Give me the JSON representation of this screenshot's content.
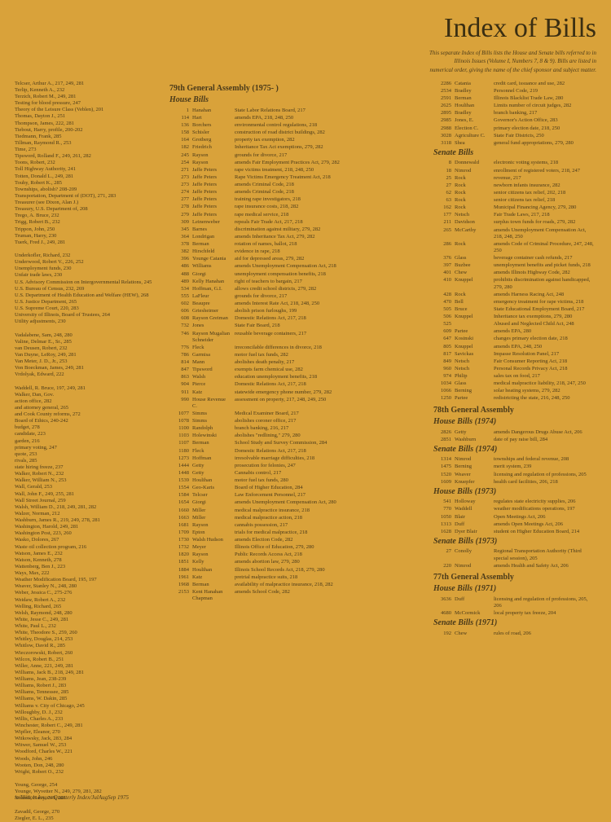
{
  "title": "Index of Bills",
  "subtitle1": "This separate Index of Bills lists the House and Senate bills referred to in",
  "subtitle2": "Illinois Issues (Volume I, Numbers 7, 8 & 9). Bills are listed in",
  "subtitle3": "numerical order, giving the name of the chief sponsor and subject matter.",
  "assembly_head": "79th General Assembly (1975-   )",
  "house_bills_head": "House Bills",
  "senate_bills_head": "Senate Bills",
  "footer": "iv/Illinois Issues Quarterly Index/JulAugSep 1975",
  "leftIndex": [
    "Telcser, Arthur A., 217, 249, 281",
    "Terlip, Kenneth A., 232",
    "Terzich, Robert M., 249, 281",
    "Testing for blood pressure, 247",
    "Theory of the Leisure Class (Veblen), 201",
    "Thomas, Dayton J., 251",
    "Thompson, James, 222, 281",
    "Tiebout, Harry, profile, 200-202",
    "Tiedmann, Frank, 285",
    "Tillman, Raymond R., 253",
    "Time, 273",
    "Tipsword, Rolland F., 249, 261, 282",
    "Toons, Robert, 232",
    "Toll Highway Authority, 241",
    "Totten, Donald L., 249, 281",
    "Touhy, Robert K., 285",
    "Townships, abolish? 208-209",
    "Transportation, Department of (DOT), 271, 283",
    "Treasurer (see Dixon, Alan J.)",
    "Treasury, U.S. Department of, 208",
    "Trego, A. Bruce, 232",
    "Trigg, Robert B., 232",
    "Trippon, John, 250",
    "Truman, Harry, 230",
    "Tuerk, Fred J., 249, 281",
    "",
    "Underkofler, Richard, 232",
    "Underwood, Robert V., 226, 252",
    "Unemployment funds, 230",
    "Unfair trade laws, 230",
    "U.S. Advisory Commission on Intergovernmental Relations, 245",
    "U.S. Bureau of Census, 232, 269",
    "U.S. Department of Health Education and Welfare (HEW), 268",
    "U.S. Justice Department, 265",
    "U.S. Supreme Court, 220, 283",
    "University of Illinois, Board of Trustees, 264",
    "Utility adjustments, 230",
    "",
    "Vadalabene, Sam, 248, 280",
    "Valine, Delmar E., Sr., 285",
    "van Deusen, Robert, 232",
    "Van Duyne, LeRoy, 249, 281",
    "Van Meter, J. D., Jr., 253",
    "Von Boeckman, James, 249, 281",
    "Vrdolyak, Edward, 222",
    "",
    "Waddell, R. Bruce, 197, 249, 281",
    "Walker, Dan, Gov.",
    "  action office, 282",
    "  and attorney general, 265",
    "  and Cook County reforms, 272",
    "  Board of Ethics, 240-242",
    "  budget, 278",
    "  candidate, 223",
    "  garden, 216",
    "  primary voting, 247",
    "  quote, 253",
    "  rivals, 285",
    "  state hiring freeze, 237",
    "Walker, Robert N., 232",
    "Walker, William N., 253",
    "Wall, Gerald, 253",
    "Wall, John F., 249, 255, 281",
    "Wall Street Journal, 259",
    "Walsh, William D., 218, 249, 281, 282",
    "Walzer, Norman, 212",
    "Washburn, James R., 219, 249, 278, 281",
    "Washington, Harold, 249, 281",
    "Washington Post, 223, 260",
    "Wasko, Dolores, 267",
    "Waste oil collection program, 216",
    "Watson, James E., 232",
    "Watson, Kenneth, 278",
    "Wattenberg, Ben J., 223",
    "Ways, Max, 222",
    "Weather Modification Board, 195, 197",
    "Weaver, Stanley N., 248, 280",
    "Weber, Jessica C., 275-276",
    "Weidaw, Robert A., 232",
    "Welling, Richard, 265",
    "Welsh, Raymond, 248, 280",
    "White, Jesse C., 249, 281",
    "White, Paul L., 232",
    "White, Theodore S., 259, 260",
    "Whitley, Douglas, 214, 253",
    "Whitlow, David R., 285",
    "Wieczorowski, Robert, 260",
    "Wilcox, Robert B., 251",
    "Willer, Anne, 221, 249, 281",
    "Williams, Jack B., 218, 249, 281",
    "Williams, Jean, 238-239",
    "Williams, Robert J., 283",
    "Williams, Tennessee, 285",
    "Williams, W. Dakin, 285",
    "Williams v. City of Chicago, 245",
    "Willoughby, D. J., 232",
    "Willis, Charles A., 233",
    "Winchester, Robert C., 249, 281",
    "Wipfler, Eleanor, 270",
    "Witkowsky, Jack, 283, 284",
    "Witwer, Samuel W., 253",
    "Woodford, Charles W., 221",
    "Woods, John, 246",
    "Wooten, Don, 248, 280",
    "Wright, Robert O., 232",
    "",
    "Young, George, 254",
    "Younge, Wyvetter N., 249, 279, 281, 282",
    "Yourell, Harry, 249, 281",
    "",
    "Zavadil, George, 270",
    "Ziegler, E. L., 235"
  ],
  "houseBills": [
    {
      "n": "1",
      "s": "Hanahan",
      "d": "State Labor Relations Board, 217"
    },
    {
      "n": "114",
      "s": "Hart",
      "d": "amends EPA, 218, 248, 250"
    },
    {
      "n": "136",
      "s": "Borchers",
      "d": "environmental control regulations, 218"
    },
    {
      "n": "158",
      "s": "Schisler",
      "d": "construction of road district buildings, 282"
    },
    {
      "n": "164",
      "s": "Grotberg",
      "d": "property tax exemption, 282"
    },
    {
      "n": "182",
      "s": "Friedrich",
      "d": "Inheritance Tax Act exemptions, 279, 282"
    },
    {
      "n": "245",
      "s": "Rayson",
      "d": "grounds for divorce, 217"
    },
    {
      "n": "254",
      "s": "Rayson",
      "d": "amends Fair Employment Practices Act, 279, 282"
    },
    {
      "n": "271",
      "s": "Jaffe Peters",
      "d": "rape victims treatment, 218, 248, 250"
    },
    {
      "n": "273",
      "s": "Jaffe Peters",
      "d": "Rape Victims Emergency Treatment Act, 218"
    },
    {
      "n": "273",
      "s": "Jaffe Peters",
      "d": "amends Criminal Code, 218"
    },
    {
      "n": "274",
      "s": "Jaffe Peters",
      "d": "amends Criminal Code, 218"
    },
    {
      "n": "277",
      "s": "Jaffe Peters",
      "d": "training rape investigators, 218"
    },
    {
      "n": "278",
      "s": "Jaffe Peters",
      "d": "rape insurance costs, 218, 282"
    },
    {
      "n": "279",
      "s": "Jaffe Peters",
      "d": "rape medical service, 218"
    },
    {
      "n": "309",
      "s": "Leinenweber",
      "d": "repeals Fair Trade Act, 217, 218"
    },
    {
      "n": "345",
      "s": "Barnes",
      "d": "discrimination against military, 279, 282"
    },
    {
      "n": "364",
      "s": "Londrigan",
      "d": "amends Inheritance Tax Act, 279, 282"
    },
    {
      "n": "378",
      "s": "Berman",
      "d": "rotation of names, ballot, 218"
    },
    {
      "n": "382",
      "s": "Hirschfeld",
      "d": "evidence in rape, 218"
    },
    {
      "n": "396",
      "s": "Younge Catania",
      "d": "aid for depressed areas, 279, 282"
    },
    {
      "n": "486",
      "s": "Williams",
      "d": "amends Unemployment Compensation Act, 218"
    },
    {
      "n": "488",
      "s": "Giorgi",
      "d": "unemployment compensation benefits, 218"
    },
    {
      "n": "489",
      "s": "Kelly Hanahan",
      "d": "right of teachers to bargain, 217"
    },
    {
      "n": "534",
      "s": "Hoffman, G.I.",
      "d": "allows credit school districts, 279, 282"
    },
    {
      "n": "555",
      "s": "LaFleur",
      "d": "grounds for divorce, 217"
    },
    {
      "n": "602",
      "s": "Beaupre",
      "d": "amends Interest Rate Act, 218, 248, 250"
    },
    {
      "n": "606",
      "s": "Griesheimer",
      "d": "abolish prison furloughs, 199"
    },
    {
      "n": "608",
      "s": "Rayson Greiman",
      "d": "Domestic Relations Act, 217, 218"
    },
    {
      "n": "732",
      "s": "Jones",
      "d": "State Fair Board, 218"
    },
    {
      "n": "746",
      "s": "Rayson Mugalian Schneider",
      "d": "reusable beverage containers, 217"
    },
    {
      "n": "776",
      "s": "Fleck",
      "d": "irreconcilable differences in divorce, 218"
    },
    {
      "n": "786",
      "s": "Garmisa",
      "d": "motor fuel tax funds, 282"
    },
    {
      "n": "814",
      "s": "Mann",
      "d": "abolishes death penalty, 217"
    },
    {
      "n": "847",
      "s": "Tipsword",
      "d": "exempts farm chemical use, 282"
    },
    {
      "n": "863",
      "s": "Walsh",
      "d": "education unemployment benefits, 218"
    },
    {
      "n": "904",
      "s": "Pierce",
      "d": "Domestic Relations Act, 217, 218"
    },
    {
      "n": "911",
      "s": "Katz",
      "d": "statewide emergency phone number, 279, 282"
    },
    {
      "n": "990",
      "s": "House Revenue C.",
      "d": "assessment on property, 217, 248, 249, 250"
    },
    {
      "n": "1077",
      "s": "Simms",
      "d": "Medical Examiner Board, 217"
    },
    {
      "n": "1078",
      "s": "Simms",
      "d": "abolishes coroner office, 217"
    },
    {
      "n": "1100",
      "s": "Randolph",
      "d": "branch banking, 216, 217"
    },
    {
      "n": "1103",
      "s": "Holewinski",
      "d": "abolishes \"redlining,\" 279, 280"
    },
    {
      "n": "1107",
      "s": "Berman",
      "d": "School Study and Survey Commission, 284"
    },
    {
      "n": "1180",
      "s": "Fleck",
      "d": "Domestic Relations Act, 217, 218"
    },
    {
      "n": "1273",
      "s": "Hoffman",
      "d": "irresolvable marriage difficulties, 218"
    },
    {
      "n": "1444",
      "s": "Getty",
      "d": "prosecution for felonies, 247"
    },
    {
      "n": "1448",
      "s": "Getty",
      "d": "Cannabis control, 217"
    },
    {
      "n": "1539",
      "s": "Houlihan",
      "d": "motor fuel tax funds, 280"
    },
    {
      "n": "1554",
      "s": "Geo-Karis",
      "d": "Board of Higher Education, 284"
    },
    {
      "n": "1584",
      "s": "Telcser",
      "d": "Law Enforcement Personnel, 217"
    },
    {
      "n": "1654",
      "s": "Giorgi",
      "d": "amends Unemployment Compensation Act, 280"
    },
    {
      "n": "1660",
      "s": "Miller",
      "d": "medical malpractice insurance, 218"
    },
    {
      "n": "1663",
      "s": "Miller",
      "d": "medical malpractice action, 218"
    },
    {
      "n": "1681",
      "s": "Rayson",
      "d": "cannabis possession, 217"
    },
    {
      "n": "1709",
      "s": "Epton",
      "d": "trials for medical malpractice, 218"
    },
    {
      "n": "1730",
      "s": "Walsh Hudson",
      "d": "amends Election Code, 282"
    },
    {
      "n": "1732",
      "s": "Meyer",
      "d": "Illinois Office of Education, 279, 280"
    },
    {
      "n": "1820",
      "s": "Rayson",
      "d": "Public Records Access Act, 218"
    },
    {
      "n": "1851",
      "s": "Kelly",
      "d": "amends abortion law, 279, 280"
    },
    {
      "n": "1884",
      "s": "Houlihan",
      "d": "Illinois School Records Act, 218, 279, 280"
    },
    {
      "n": "1961",
      "s": "Katz",
      "d": "pretrial malpractice suits, 218"
    },
    {
      "n": "1968",
      "s": "Berman",
      "d": "availability of malpractice insurance, 218, 282"
    },
    {
      "n": "2153",
      "s": "Kent Hanahan Chapman",
      "d": "amends School Code, 282"
    }
  ],
  "houseBillsRight": [
    {
      "n": "2286",
      "s": "Catania",
      "d": "credit card, issuance and use, 282"
    },
    {
      "n": "2534",
      "s": "Bradley",
      "d": "Personnel Code, 219"
    },
    {
      "n": "2591",
      "s": "Berman",
      "d": "Illinois Blacklist Trade Law, 280"
    },
    {
      "n": "2625",
      "s": "Houlihan",
      "d": "Limits number of circuit judges, 282"
    },
    {
      "n": "2895",
      "s": "Bradley",
      "d": "branch banking, 217"
    },
    {
      "n": "2985",
      "s": "Jones, E.",
      "d": "Governor's Action Office, 283"
    },
    {
      "n": "2988",
      "s": "Election C.",
      "d": "primary election date, 218, 250"
    },
    {
      "n": "3028",
      "s": "Agriculture C.",
      "d": "State Fair Districts, 250"
    },
    {
      "n": "3118",
      "s": "Shea",
      "d": "general fund appropriations, 279, 280"
    }
  ],
  "senateBills": [
    {
      "n": "8",
      "s": "Donnewald",
      "d": "electronic voting systems, 218"
    },
    {
      "n": "18",
      "s": "Nimrod",
      "d": "enrollment of registered voters, 218, 247"
    },
    {
      "n": "25",
      "s": "Rock",
      "d": "revenue, 217"
    },
    {
      "n": "27",
      "s": "Rock",
      "d": "newborn infants insurance, 282"
    },
    {
      "n": "62",
      "s": "Rock",
      "d": "senior citizens tax relief, 202, 218"
    },
    {
      "n": "63",
      "s": "Rock",
      "d": "senior citizens tax relief, 218"
    },
    {
      "n": "162",
      "s": "Rock",
      "d": "Municipal Financing Agency, 279, 280"
    },
    {
      "n": "177",
      "s": "Netsch",
      "d": "Fair Trade Laws, 217, 218"
    },
    {
      "n": "211",
      "s": "Davidson",
      "d": "surplus town funds for roads, 279, 282"
    },
    {
      "n": "265",
      "s": "McCarthy",
      "d": "amends Unemployment Compensation Act, 218, 248, 250"
    },
    {
      "n": "286",
      "s": "Rock",
      "d": "amends Code of Criminal Procedure, 247, 248, 250"
    },
    {
      "n": "376",
      "s": "Glass",
      "d": "beverage container cash refunds, 217"
    },
    {
      "n": "397",
      "s": "Buzbee",
      "d": "unemployment benefits and picket funds, 218"
    },
    {
      "n": "401",
      "s": "Chew",
      "d": "amends Illinois Highway Code, 282"
    },
    {
      "n": "410",
      "s": "Knuppel",
      "d": "prohibits discrimination against handicapped, 279, 280"
    },
    {
      "n": "428",
      "s": "Rock",
      "d": "amends Harness Racing Act, 248"
    },
    {
      "n": "470",
      "s": "Bell",
      "d": "emergency treatment for rape victims, 218"
    },
    {
      "n": "505",
      "s": "Bruce",
      "d": "State Educational Employment Board, 217"
    },
    {
      "n": "506",
      "s": "Knuppel",
      "d": "Inheritance tax exemptions, 279, 280"
    },
    {
      "n": "525",
      "s": "",
      "d": "Abused and Neglected Child Act, 248"
    },
    {
      "n": "609",
      "s": "Partee",
      "d": "amends EPA, 280"
    },
    {
      "n": "647",
      "s": "Kosinski",
      "d": "changes primary election date, 218"
    },
    {
      "n": "805",
      "s": "Knuppel",
      "d": "amends EPA, 248, 250"
    },
    {
      "n": "817",
      "s": "Savickas",
      "d": "Impasse Resolution Panel, 217"
    },
    {
      "n": "849",
      "s": "Netsch",
      "d": "Fair Consumer Reporting Act, 218"
    },
    {
      "n": "960",
      "s": "Netsch",
      "d": "Personal Records Privacy Act, 218"
    },
    {
      "n": "974",
      "s": "Philip",
      "d": "sales tax on food, 217"
    },
    {
      "n": "1034",
      "s": "Glass",
      "d": "medical malpractice liability, 218, 247, 250"
    },
    {
      "n": "1066",
      "s": "Berning",
      "d": "solar heating systems, 279, 282"
    },
    {
      "n": "1250",
      "s": "Partee",
      "d": "redistricting the state, 216, 248, 250"
    }
  ],
  "assembly78_head": "78th General Assembly",
  "hb1974_head": "House Bills (1974)",
  "hb1974": [
    {
      "n": "2826",
      "s": "Getty",
      "d": "amends Dangerous Drugs Abuse Act, 206"
    },
    {
      "n": "2851",
      "s": "Washburn",
      "d": "date of pay raise bill, 284"
    }
  ],
  "sb1974_head": "Senate Bills (1974)",
  "sb1974": [
    {
      "n": "1314",
      "s": "Nimrod",
      "d": "townships and federal revenue, 208"
    },
    {
      "n": "1475",
      "s": "Berning",
      "d": "merit system, 239"
    },
    {
      "n": "1520",
      "s": "Weaver",
      "d": "licensing and regulation of professions, 205"
    },
    {
      "n": "1609",
      "s": "Knuepfer",
      "d": "health card facilities, 206, 218"
    }
  ],
  "hb1973_head": "House Bills (1973)",
  "hb1973": [
    {
      "n": "541",
      "s": "Holloway",
      "d": "regulates state electricity supplies, 206"
    },
    {
      "n": "770",
      "s": "Waddell",
      "d": "weather modifications operations, 197"
    },
    {
      "n": "1050",
      "s": "Blair",
      "d": "Open Meetings Act, 206"
    },
    {
      "n": "1313",
      "s": "Duff",
      "d": "amends Open Meetings Act, 206"
    },
    {
      "n": "1628",
      "s": "Dyer Blair",
      "d": "student on Higher Education Board, 214"
    }
  ],
  "sb1973_head": "Senate Bills (1973)",
  "sb1973": [
    {
      "n": "27",
      "s": "Conolly",
      "d": "Regional Transportation Authority (Third special session), 205"
    },
    {
      "n": "220",
      "s": "Nimrod",
      "d": "amends Health and Safety Act, 206"
    }
  ],
  "assembly77_head": "77th General Assembly",
  "hb1971_head": "House Bills (1971)",
  "hb1971": [
    {
      "n": "3636",
      "s": "Duff",
      "d": "licensing and regulation of professions, 205, 206"
    },
    {
      "n": "4680",
      "s": "McCormick",
      "d": "local property tax freeze, 204"
    }
  ],
  "sb1971_head": "Senate Bills (1971)",
  "sb1971": [
    {
      "n": "192",
      "s": "Chew",
      "d": "rules of road, 206"
    }
  ]
}
